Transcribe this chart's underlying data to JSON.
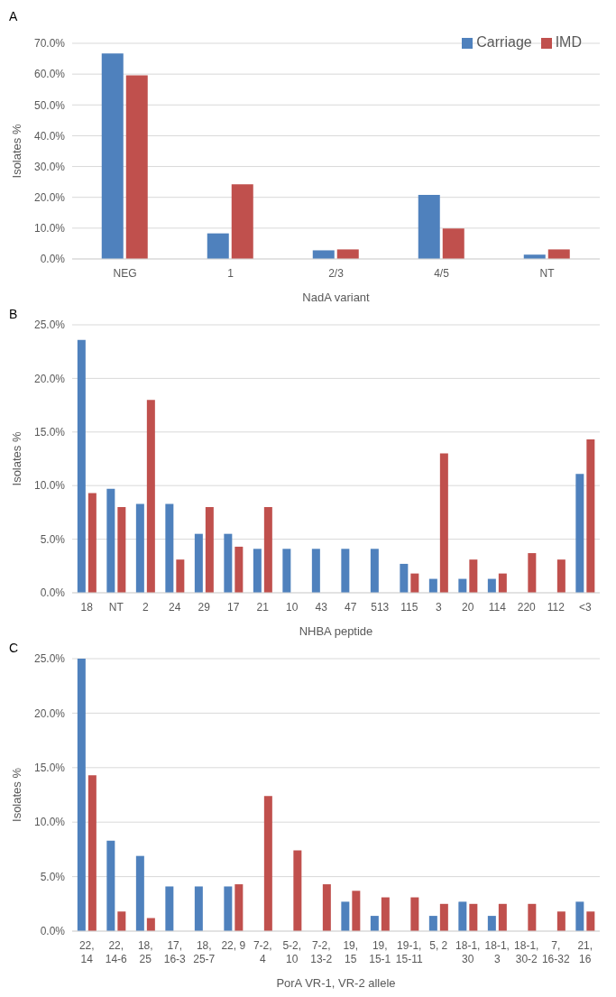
{
  "chart_data": [
    {
      "type": "bar",
      "title": "A",
      "xlabel": "NadA variant",
      "ylabel": "Isolates %",
      "categories": [
        "NEG",
        "1",
        "2/3",
        "4/5",
        "NT"
      ],
      "series": [
        {
          "name": "Carriage",
          "color": "#4f81bd",
          "values": [
            66.7,
            8.3,
            2.8,
            20.8,
            1.4
          ]
        },
        {
          "name": "IMD",
          "color": "#c0504d",
          "values": [
            59.6,
            24.2,
            3.1,
            9.9,
            3.1
          ]
        }
      ],
      "ylim": [
        0,
        70
      ],
      "yticks": [
        {
          "value": 0,
          "label": "0.0%"
        },
        {
          "value": 10,
          "label": "10.0%"
        },
        {
          "value": 20,
          "label": "20.0%"
        },
        {
          "value": 30,
          "label": "30.0%"
        },
        {
          "value": 40,
          "label": "40.0%"
        },
        {
          "value": 50,
          "label": "50.0%"
        },
        {
          "value": 60,
          "label": "60.0%"
        },
        {
          "value": 70,
          "label": "70.0%"
        }
      ],
      "grid": "y",
      "legend": "top right"
    },
    {
      "type": "bar",
      "title": "B",
      "xlabel": "NHBA peptide",
      "ylabel": "Isolates %",
      "categories": [
        "18",
        "NT",
        "2",
        "24",
        "29",
        "17",
        "21",
        "10",
        "43",
        "47",
        "513",
        "115",
        "3",
        "20",
        "114",
        "220",
        "112",
        "<3"
      ],
      "series": [
        {
          "color": "#4f81bd",
          "values": [
            23.6,
            9.7,
            8.3,
            8.3,
            5.5,
            5.5,
            4.1,
            4.1,
            4.1,
            4.1,
            4.1,
            2.7,
            1.3,
            1.3,
            1.3,
            0,
            0,
            11.1
          ]
        },
        {
          "color": "#c0504d",
          "values": [
            9.3,
            8.0,
            18.0,
            3.1,
            8.0,
            4.3,
            8.0,
            0,
            0,
            0,
            0,
            1.8,
            13.0,
            3.1,
            1.8,
            3.7,
            3.1,
            14.3
          ]
        }
      ],
      "ylim": [
        0,
        25
      ],
      "yticks": [
        {
          "value": 0,
          "label": "0.0%"
        },
        {
          "value": 5,
          "label": "5.0%"
        },
        {
          "value": 10,
          "label": "10.0%"
        },
        {
          "value": 15,
          "label": "15.0%"
        },
        {
          "value": 20,
          "label": "20.0%"
        },
        {
          "value": 25,
          "label": "25.0%"
        }
      ],
      "grid": "y"
    },
    {
      "type": "bar",
      "title": "C",
      "xlabel": "PorA VR-1, VR-2 allele",
      "ylabel": "Isolates %",
      "categories": [
        "22, 14",
        "22, 14-6",
        "18, 25",
        "17, 16-3",
        "18, 25-7",
        "22, 9",
        "7-2, 4",
        "5-2, 10",
        "7-2, 13-2",
        "19, 15",
        "19, 15-1",
        "19-1, 15-11",
        "5, 2",
        "18-1, 30",
        "18-1, 3",
        "18-1, 30-2",
        "7, 16-32",
        "21, 16"
      ],
      "series": [
        {
          "color": "#4f81bd",
          "values": [
            25.0,
            8.3,
            6.9,
            4.1,
            4.1,
            4.1,
            0,
            0,
            0,
            2.7,
            1.4,
            0,
            1.4,
            2.7,
            1.4,
            0,
            0,
            2.7
          ]
        },
        {
          "color": "#c0504d",
          "values": [
            14.3,
            1.8,
            1.2,
            0,
            0,
            4.3,
            12.4,
            7.4,
            4.3,
            3.7,
            3.1,
            3.1,
            2.5,
            2.5,
            2.5,
            2.5,
            1.8,
            1.8
          ]
        }
      ],
      "ylim": [
        0,
        25
      ],
      "yticks": [
        {
          "value": 0,
          "label": "0.0%"
        },
        {
          "value": 5,
          "label": "5.0%"
        },
        {
          "value": 10,
          "label": "10.0%"
        },
        {
          "value": 15,
          "label": "15.0%"
        },
        {
          "value": 20,
          "label": "20.0%"
        },
        {
          "value": 25,
          "label": "25.0%"
        }
      ],
      "grid": "y"
    }
  ]
}
